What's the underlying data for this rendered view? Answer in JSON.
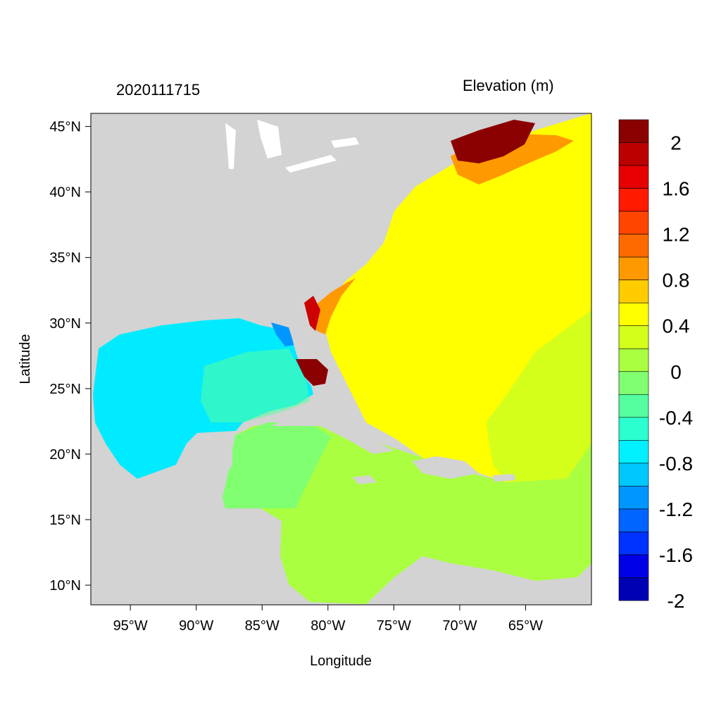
{
  "header": {
    "datetime": "2020111715",
    "variable": "Elevation (m)"
  },
  "axes": {
    "xlabel": "Longitude",
    "ylabel": "Latitude",
    "x_ticks": [
      "95°W",
      "90°W",
      "85°W",
      "80°W",
      "75°W",
      "70°W",
      "65°W"
    ],
    "y_ticks": [
      "45°N",
      "40°N",
      "35°N",
      "30°N",
      "25°N",
      "20°N",
      "15°N",
      "10°N"
    ],
    "lon_range": [
      -98,
      -60
    ],
    "lat_range": [
      8.5,
      46
    ]
  },
  "colorbar": {
    "labels": [
      "2",
      "1.6",
      "1.2",
      "0.8",
      "0.4",
      "0",
      "-0.4",
      "-0.8",
      "-1.2",
      "-1.6",
      "-2"
    ],
    "colors": [
      "#8b0000",
      "#bb0000",
      "#e60000",
      "#ff1a00",
      "#ff4500",
      "#ff6a00",
      "#ff9900",
      "#ffcc00",
      "#ffff00",
      "#d4ff1a",
      "#aaff40",
      "#80ff70",
      "#55ffa0",
      "#2bffcf",
      "#00f0ff",
      "#00c8ff",
      "#0096ff",
      "#0064ff",
      "#0032ff",
      "#0000e6",
      "#0000b4"
    ]
  },
  "colors": {
    "land": "#d3d3d3",
    "gulf": "#00ebff",
    "atlantic": "#ffff00",
    "caribbean": "#aaff40",
    "surge_high": "#8b0000"
  }
}
